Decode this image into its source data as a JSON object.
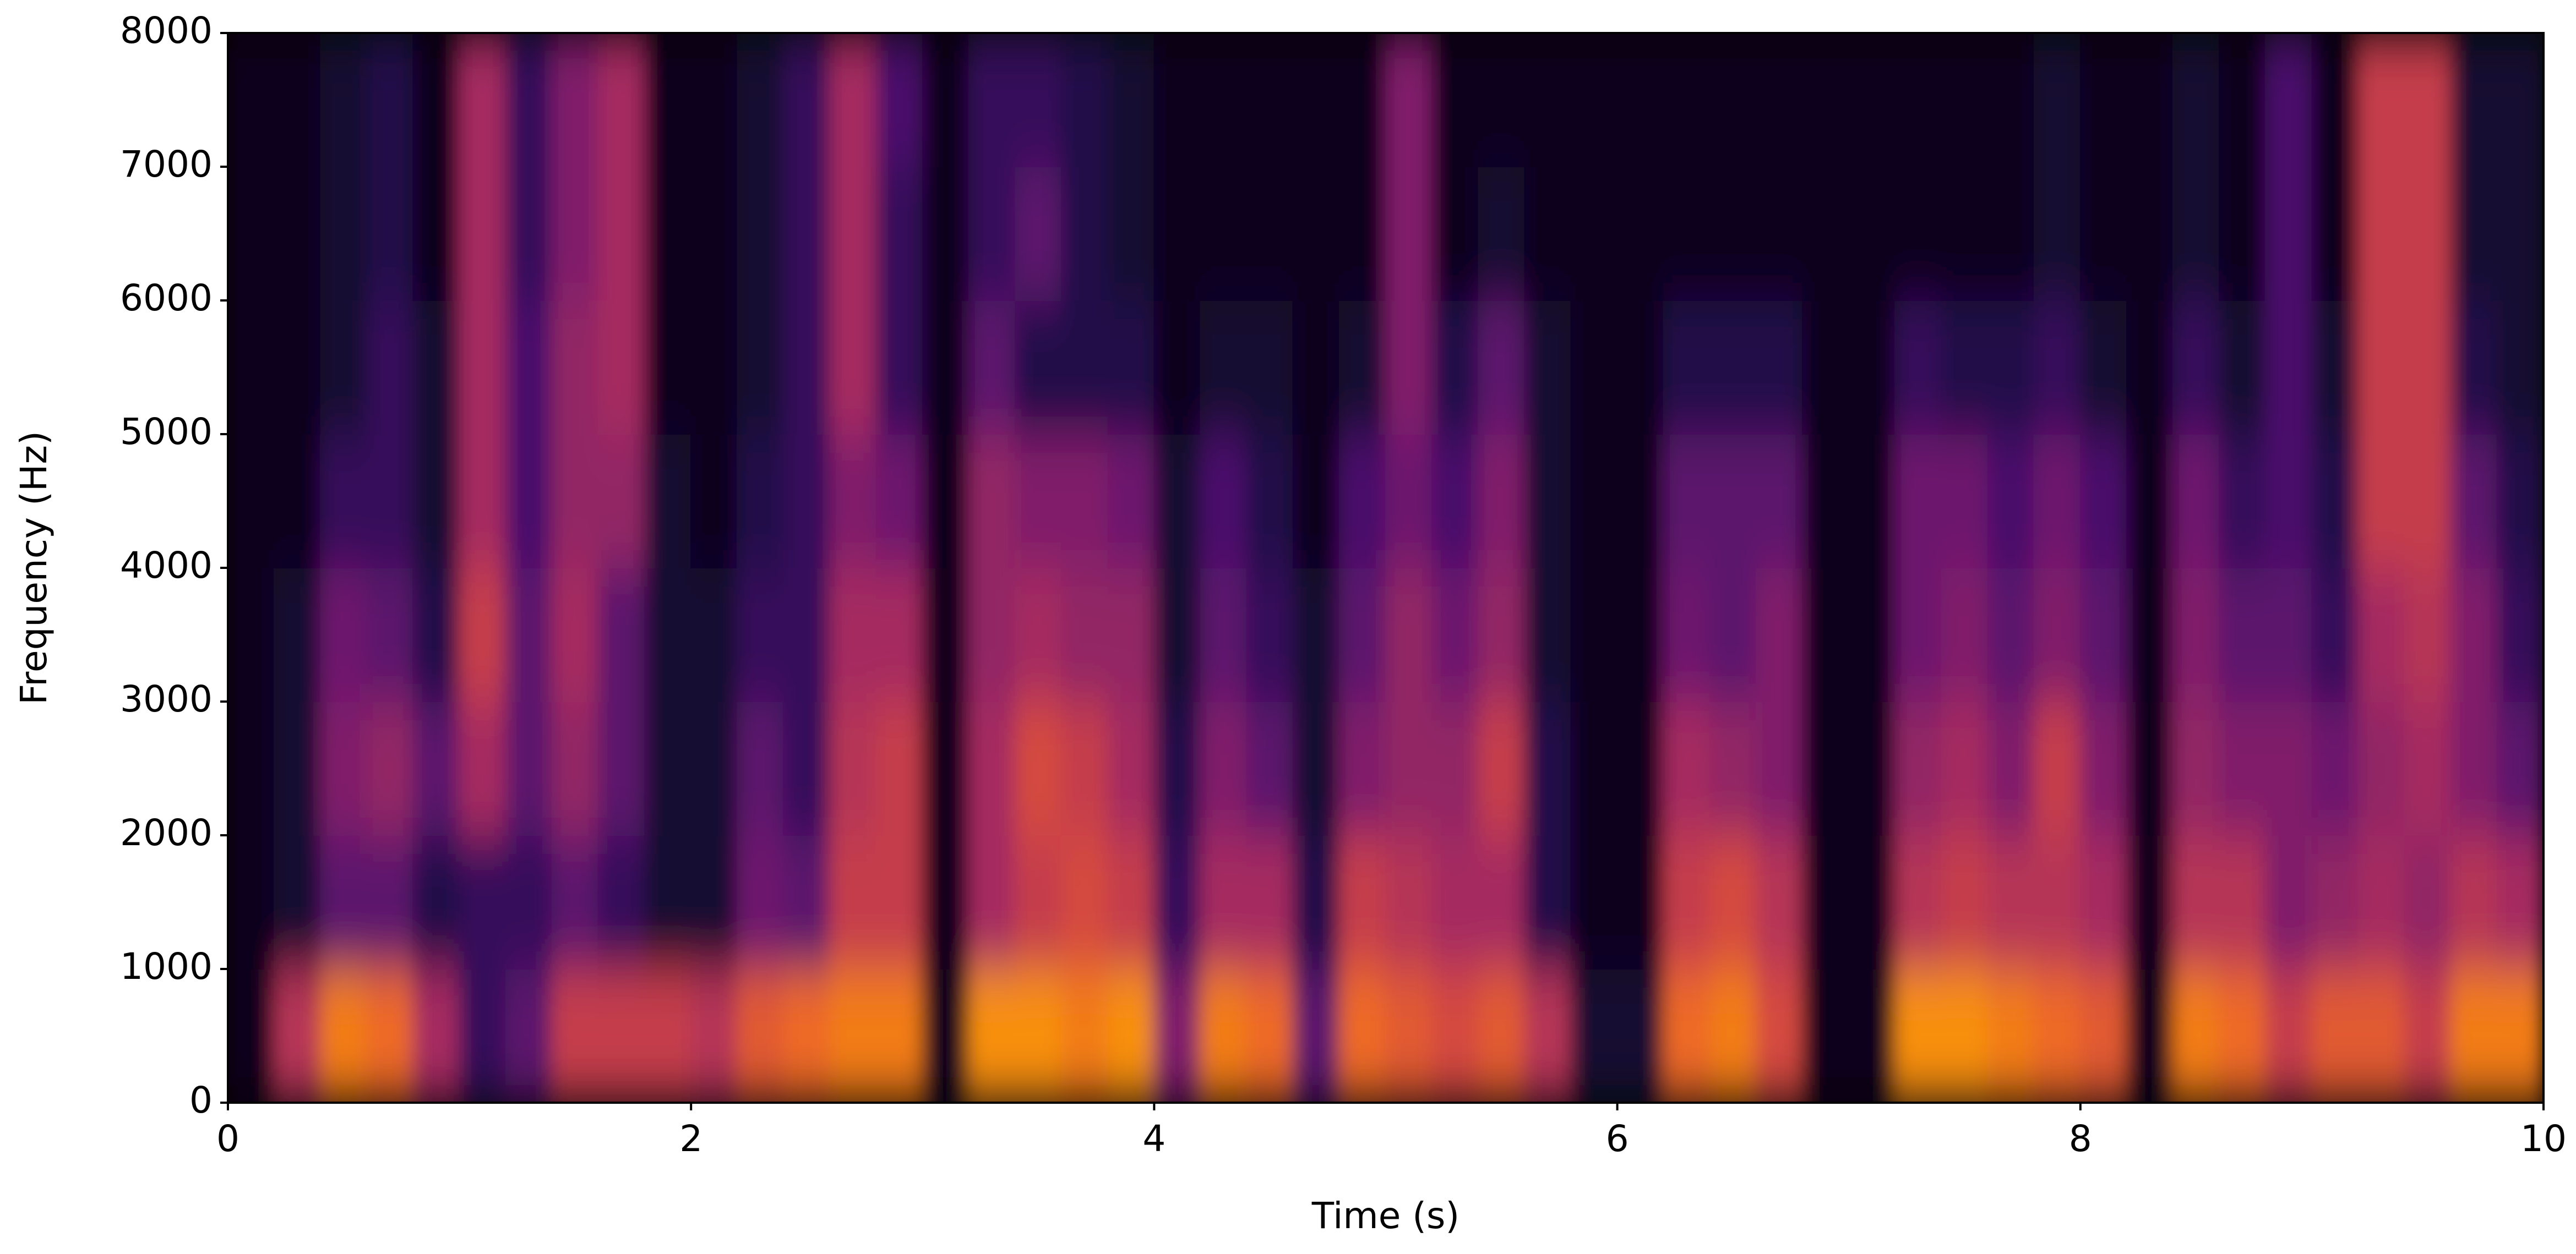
{
  "chart_data": {
    "type": "heatmap",
    "xlabel": "Time (s)",
    "ylabel": "Frequency (Hz)",
    "colormap": "inferno",
    "xlim": [
      0,
      10
    ],
    "ylim": [
      0,
      8000
    ],
    "xticks": [
      0,
      2,
      4,
      6,
      8,
      10
    ],
    "yticks": [
      0,
      1000,
      2000,
      3000,
      4000,
      5000,
      6000,
      7000,
      8000
    ],
    "x": [
      0.1,
      0.3,
      0.5,
      0.7,
      0.9,
      1.1,
      1.3,
      1.5,
      1.7,
      1.9,
      2.1,
      2.3,
      2.5,
      2.7,
      2.9,
      3.1,
      3.3,
      3.5,
      3.7,
      3.9,
      4.1,
      4.3,
      4.5,
      4.7,
      4.9,
      5.1,
      5.3,
      5.5,
      5.7,
      5.9,
      6.1,
      6.3,
      6.5,
      6.7,
      6.9,
      7.1,
      7.3,
      7.5,
      7.7,
      7.9,
      8.1,
      8.3,
      8.5,
      8.7,
      8.9,
      9.1,
      9.3,
      9.5,
      9.7,
      9.9
    ],
    "y": [
      500,
      1500,
      2500,
      3500,
      4500,
      5500,
      6500,
      7500
    ],
    "z": [
      [
        0.05,
        0.55,
        0.8,
        0.75,
        0.5,
        0.2,
        0.3,
        0.6,
        0.6,
        0.6,
        0.55,
        0.7,
        0.75,
        0.8,
        0.8,
        0.05,
        0.85,
        0.85,
        0.8,
        0.85,
        0.4,
        0.8,
        0.75,
        0.3,
        0.75,
        0.7,
        0.65,
        0.7,
        0.55,
        0.1,
        0.1,
        0.75,
        0.8,
        0.65,
        0.05,
        0.05,
        0.85,
        0.85,
        0.8,
        0.75,
        0.7,
        0.05,
        0.8,
        0.75,
        0.6,
        0.7,
        0.7,
        0.6,
        0.8,
        0.8
      ],
      [
        0.05,
        0.1,
        0.3,
        0.3,
        0.15,
        0.2,
        0.2,
        0.3,
        0.2,
        0.1,
        0.1,
        0.35,
        0.3,
        0.6,
        0.6,
        0.05,
        0.5,
        0.6,
        0.65,
        0.6,
        0.2,
        0.5,
        0.5,
        0.15,
        0.6,
        0.55,
        0.5,
        0.5,
        0.15,
        0.05,
        0.05,
        0.6,
        0.65,
        0.55,
        0.05,
        0.05,
        0.55,
        0.6,
        0.55,
        0.55,
        0.5,
        0.05,
        0.55,
        0.55,
        0.4,
        0.45,
        0.5,
        0.45,
        0.55,
        0.5
      ],
      [
        0.05,
        0.1,
        0.4,
        0.45,
        0.3,
        0.5,
        0.3,
        0.45,
        0.3,
        0.1,
        0.1,
        0.3,
        0.2,
        0.55,
        0.6,
        0.05,
        0.5,
        0.65,
        0.6,
        0.5,
        0.15,
        0.4,
        0.3,
        0.1,
        0.4,
        0.45,
        0.45,
        0.6,
        0.15,
        0.05,
        0.05,
        0.5,
        0.45,
        0.4,
        0.05,
        0.05,
        0.45,
        0.5,
        0.4,
        0.6,
        0.4,
        0.05,
        0.45,
        0.4,
        0.4,
        0.35,
        0.45,
        0.5,
        0.4,
        0.3
      ],
      [
        0.05,
        0.1,
        0.35,
        0.3,
        0.15,
        0.6,
        0.3,
        0.5,
        0.3,
        0.1,
        0.1,
        0.2,
        0.2,
        0.5,
        0.5,
        0.05,
        0.45,
        0.5,
        0.45,
        0.45,
        0.1,
        0.3,
        0.2,
        0.1,
        0.3,
        0.45,
        0.35,
        0.45,
        0.1,
        0.05,
        0.05,
        0.35,
        0.3,
        0.4,
        0.05,
        0.05,
        0.35,
        0.4,
        0.3,
        0.4,
        0.3,
        0.05,
        0.4,
        0.3,
        0.3,
        0.2,
        0.5,
        0.55,
        0.4,
        0.2
      ],
      [
        0.05,
        0.05,
        0.2,
        0.2,
        0.1,
        0.5,
        0.25,
        0.45,
        0.45,
        0.1,
        0.05,
        0.15,
        0.2,
        0.4,
        0.35,
        0.05,
        0.45,
        0.4,
        0.4,
        0.35,
        0.1,
        0.25,
        0.15,
        0.05,
        0.25,
        0.35,
        0.25,
        0.4,
        0.1,
        0.05,
        0.05,
        0.3,
        0.3,
        0.3,
        0.05,
        0.05,
        0.35,
        0.35,
        0.25,
        0.35,
        0.25,
        0.05,
        0.35,
        0.2,
        0.25,
        0.15,
        0.6,
        0.6,
        0.3,
        0.15
      ],
      [
        0.05,
        0.05,
        0.1,
        0.2,
        0.1,
        0.5,
        0.25,
        0.45,
        0.5,
        0.05,
        0.05,
        0.1,
        0.2,
        0.5,
        0.2,
        0.05,
        0.3,
        0.15,
        0.15,
        0.15,
        0.05,
        0.1,
        0.1,
        0.05,
        0.1,
        0.4,
        0.15,
        0.3,
        0.1,
        0.05,
        0.05,
        0.15,
        0.15,
        0.15,
        0.05,
        0.05,
        0.2,
        0.15,
        0.15,
        0.2,
        0.1,
        0.05,
        0.2,
        0.1,
        0.25,
        0.1,
        0.6,
        0.6,
        0.15,
        0.1
      ],
      [
        0.05,
        0.05,
        0.1,
        0.15,
        0.05,
        0.5,
        0.2,
        0.4,
        0.5,
        0.05,
        0.05,
        0.1,
        0.2,
        0.5,
        0.2,
        0.05,
        0.2,
        0.3,
        0.15,
        0.1,
        0.05,
        0.05,
        0.05,
        0.05,
        0.05,
        0.4,
        0.05,
        0.1,
        0.05,
        0.05,
        0.05,
        0.05,
        0.05,
        0.05,
        0.05,
        0.05,
        0.05,
        0.05,
        0.05,
        0.1,
        0.05,
        0.05,
        0.1,
        0.05,
        0.25,
        0.05,
        0.6,
        0.6,
        0.1,
        0.1
      ],
      [
        0.05,
        0.05,
        0.1,
        0.15,
        0.05,
        0.5,
        0.2,
        0.4,
        0.5,
        0.05,
        0.05,
        0.1,
        0.2,
        0.5,
        0.25,
        0.05,
        0.2,
        0.2,
        0.15,
        0.1,
        0.05,
        0.05,
        0.05,
        0.05,
        0.05,
        0.4,
        0.05,
        0.05,
        0.05,
        0.05,
        0.05,
        0.05,
        0.05,
        0.05,
        0.05,
        0.05,
        0.05,
        0.05,
        0.05,
        0.1,
        0.05,
        0.05,
        0.1,
        0.05,
        0.25,
        0.05,
        0.6,
        0.6,
        0.1,
        0.1
      ]
    ]
  }
}
